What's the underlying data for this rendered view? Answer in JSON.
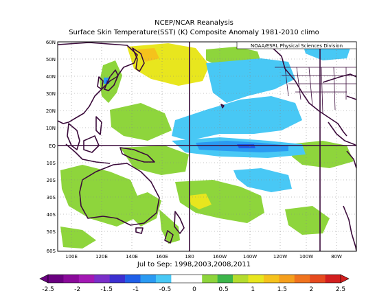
{
  "map": {
    "title": "NCEP/NCAR Reanalysis",
    "subtitle": "Surface Skin Temperature(SST) (K) Composite Anomaly 1981-2010 climo",
    "credit": "NOAA/ESRL Physical Sciences Division",
    "period": "Jul to Sep: 1998,2003,2008,2011",
    "lat_labels": [
      "60N",
      "50N",
      "40N",
      "30N",
      "20N",
      "10N",
      "EQ",
      "10S",
      "20S",
      "30S",
      "40S",
      "50S",
      "60S"
    ],
    "lon_labels": [
      "100E",
      "120E",
      "140E",
      "160E",
      "180",
      "160W",
      "140W",
      "120W",
      "100W",
      "80W"
    ]
  },
  "colorbar": {
    "labels": [
      "-2.5",
      "-2",
      "-1.5",
      "-1",
      "-0.5",
      "0",
      "0.5",
      "1",
      "1.5",
      "2",
      "2.5"
    ],
    "colors": [
      "#6a0080",
      "#8a0a9a",
      "#a318b4",
      "#7a2fc9",
      "#3c2fd0",
      "#1f5fe8",
      "#2a9af2",
      "#48c8f5",
      "#ffffff",
      "#ffffff",
      "#8ed53c",
      "#3cb54a",
      "#b4dc2e",
      "#e8e61e",
      "#f5c21c",
      "#f59f1c",
      "#f0731e",
      "#e64a1e",
      "#d21e1e"
    ]
  },
  "colors": {
    "land_outline": "#3a0a3a",
    "blue_anom": "#48c8f5",
    "green_anom": "#8ed53c",
    "yellow_anom": "#e8e61e"
  }
}
